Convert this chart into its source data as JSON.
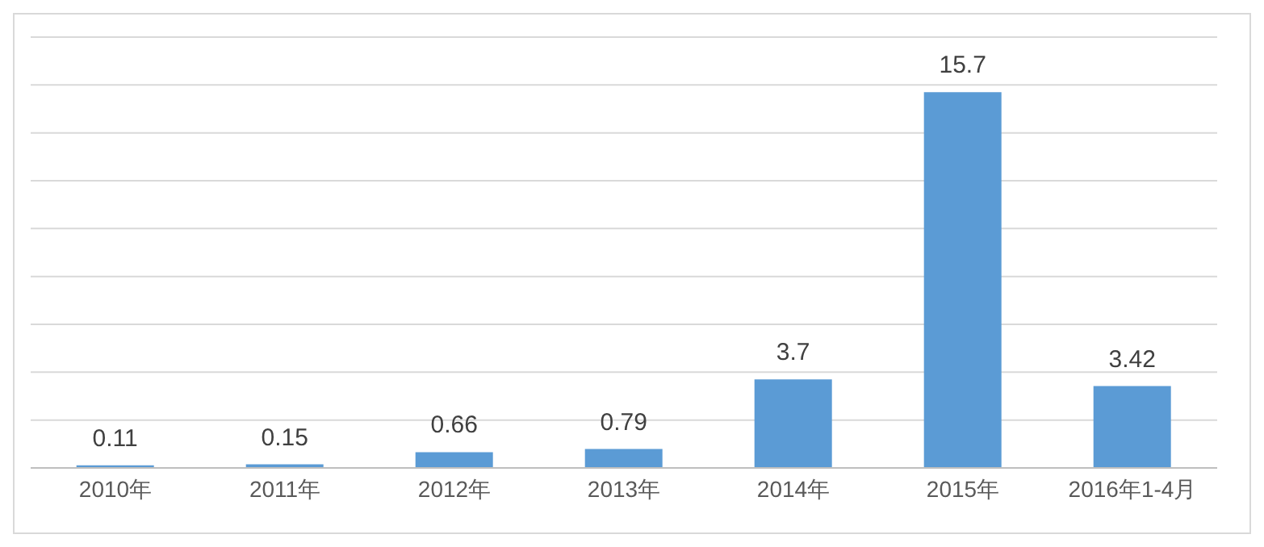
{
  "chart_data": {
    "type": "bar",
    "categories": [
      "2010年",
      "2011年",
      "2012年",
      "2013年",
      "2014年",
      "2015年",
      "2016年1-4月"
    ],
    "values": [
      0.11,
      0.15,
      0.66,
      0.79,
      3.7,
      15.7,
      3.42
    ],
    "color": "#5b9bd5",
    "ylim": [
      0,
      18
    ],
    "yticks": [
      {
        "value": 0,
        "label": null
      },
      {
        "value": 2,
        "label": null
      },
      {
        "value": 4,
        "label": null
      },
      {
        "value": 6,
        "label": null
      },
      {
        "value": 8,
        "label": null
      },
      {
        "value": 10,
        "label": null
      },
      {
        "value": 12,
        "label": null
      },
      {
        "value": 14,
        "label": null
      },
      {
        "value": 16,
        "label": null
      },
      {
        "value": 18,
        "label": null
      }
    ],
    "grid": "y",
    "tick_labels": "x",
    "data_labels": true,
    "legend": false
  }
}
